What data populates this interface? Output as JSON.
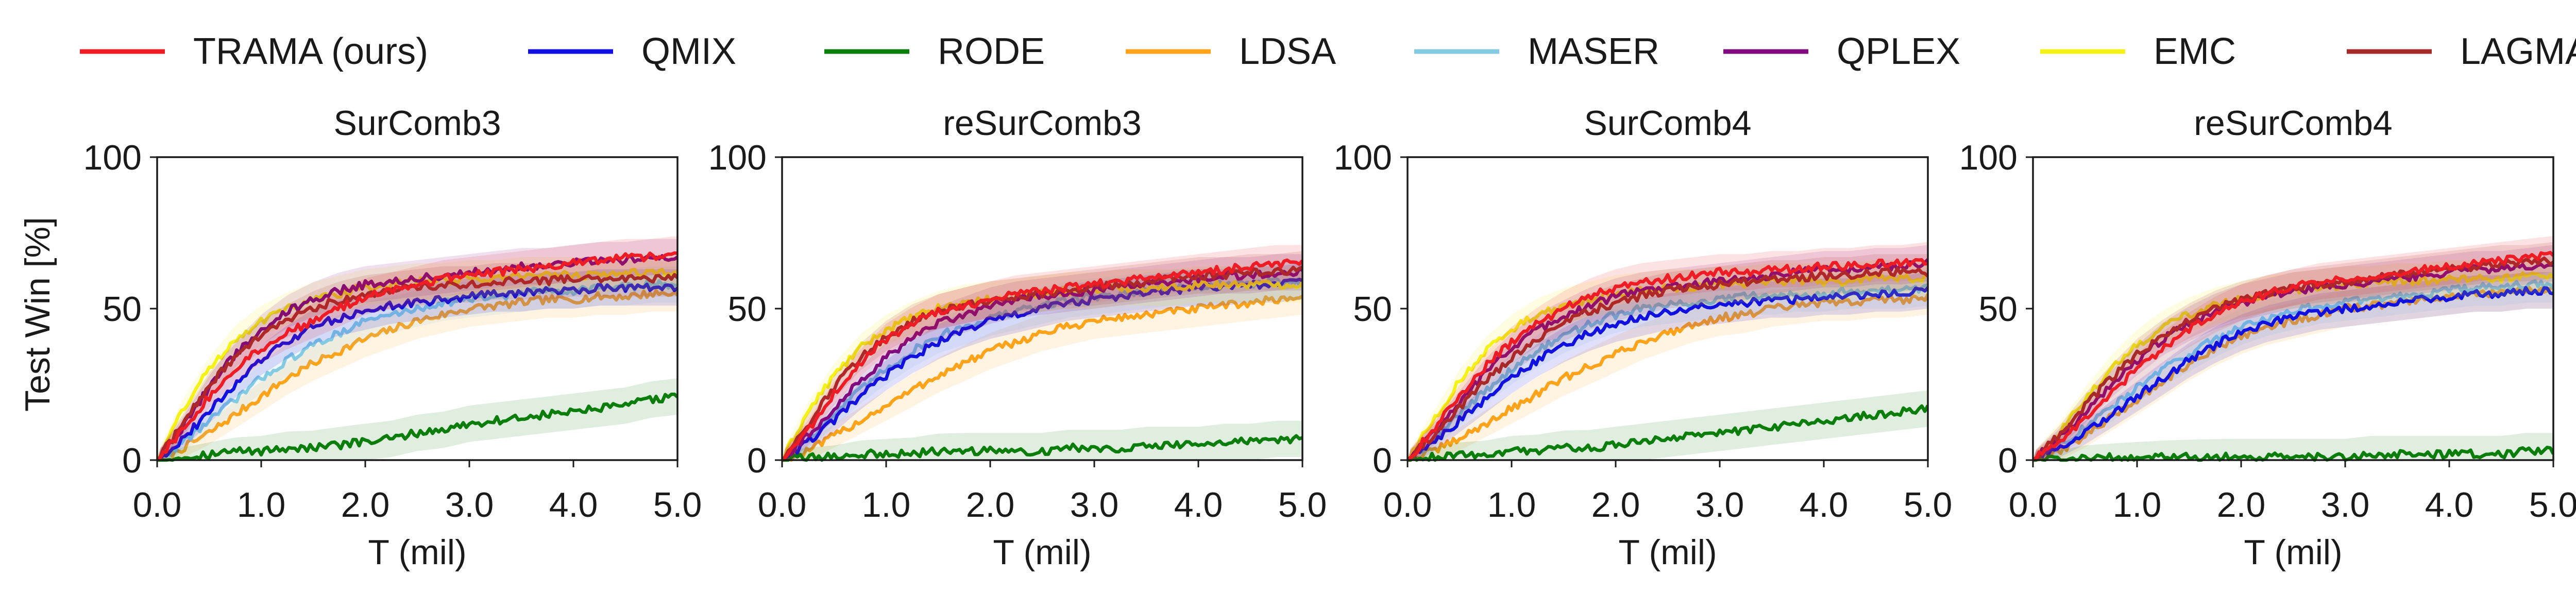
{
  "ylabel": "Test Win [%]",
  "legend": [
    {
      "name": "TRAMA (ours)",
      "color": "#ee1c25"
    },
    {
      "name": "QMIX",
      "color": "#1010e0"
    },
    {
      "name": "RODE",
      "color": "#0b7d0b"
    },
    {
      "name": "LDSA",
      "color": "#ffa31a"
    },
    {
      "name": "MASER",
      "color": "#82cbe3"
    },
    {
      "name": "QPLEX",
      "color": "#800a80"
    },
    {
      "name": "EMC",
      "color": "#f5f21a"
    },
    {
      "name": "LAGMA",
      "color": "#a52a2a"
    }
  ],
  "chart_data": [
    {
      "type": "line",
      "title": "SurComb3",
      "xlabel": "T (mil)",
      "ylabel": "Test Win [%]",
      "xlim": [
        0,
        5
      ],
      "ylim": [
        0,
        100
      ],
      "xticks": [
        "0.0",
        "1.0",
        "2.0",
        "3.0",
        "4.0",
        "5.0"
      ],
      "yticks": [
        "0",
        "50",
        "100"
      ],
      "x": [
        0,
        0.25,
        0.5,
        0.75,
        1.0,
        1.25,
        1.5,
        1.75,
        2.0,
        2.25,
        2.5,
        2.75,
        3.0,
        3.25,
        3.5,
        3.75,
        4.0,
        4.25,
        4.5,
        4.75,
        5.0
      ],
      "series": [
        {
          "name": "TRAMA (ours)",
          "values": [
            0,
            10,
            21,
            30,
            37,
            42,
            46,
            50,
            54,
            56,
            58,
            60,
            61,
            62,
            63,
            64,
            65,
            66,
            67,
            67,
            68
          ]
        },
        {
          "name": "QMIX",
          "values": [
            0,
            7,
            16,
            25,
            33,
            39,
            44,
            47,
            49,
            51,
            52,
            53,
            54,
            55,
            55,
            56,
            56,
            57,
            57,
            57,
            57
          ]
        },
        {
          "name": "RODE",
          "values": [
            0,
            1,
            2,
            3,
            3,
            4,
            4,
            5,
            6,
            7,
            9,
            10,
            12,
            13,
            14,
            15,
            16,
            17,
            18,
            20,
            21
          ]
        },
        {
          "name": "LDSA",
          "values": [
            0,
            4,
            9,
            15,
            21,
            27,
            32,
            36,
            40,
            43,
            46,
            48,
            50,
            51,
            52,
            53,
            53,
            54,
            54,
            55,
            55
          ]
        },
        {
          "name": "MASER",
          "values": [
            0,
            6,
            13,
            20,
            27,
            33,
            38,
            42,
            46,
            48,
            50,
            52,
            53,
            54,
            55,
            56,
            56,
            57,
            57,
            58,
            58
          ]
        },
        {
          "name": "QPLEX",
          "values": [
            0,
            11,
            24,
            35,
            43,
            49,
            53,
            56,
            58,
            59,
            60,
            61,
            62,
            63,
            64,
            64,
            65,
            66,
            66,
            67,
            67
          ]
        },
        {
          "name": "EMC",
          "values": [
            0,
            17,
            30,
            40,
            46,
            50,
            53,
            55,
            57,
            58,
            59,
            59,
            60,
            60,
            61,
            61,
            61,
            61,
            62,
            62,
            62
          ]
        },
        {
          "name": "LAGMA",
          "values": [
            0,
            12,
            25,
            34,
            41,
            46,
            50,
            53,
            55,
            56,
            57,
            58,
            58,
            59,
            59,
            59,
            60,
            60,
            60,
            60,
            60
          ]
        }
      ]
    },
    {
      "type": "line",
      "title": "reSurComb3",
      "xlabel": "T (mil)",
      "ylabel": "",
      "xlim": [
        0,
        5
      ],
      "ylim": [
        0,
        100
      ],
      "xticks": [
        "0.0",
        "1.0",
        "2.0",
        "3.0",
        "4.0",
        "5.0"
      ],
      "yticks": [
        "0",
        "50",
        "100"
      ],
      "x": [
        0,
        0.25,
        0.5,
        0.75,
        1.0,
        1.25,
        1.5,
        1.75,
        2.0,
        2.25,
        2.5,
        2.75,
        3.0,
        3.25,
        3.5,
        3.75,
        4.0,
        4.25,
        4.5,
        4.75,
        5.0
      ],
      "series": [
        {
          "name": "TRAMA (ours)",
          "values": [
            0,
            10,
            22,
            32,
            40,
            45,
            49,
            51,
            53,
            55,
            56,
            57,
            58,
            59,
            60,
            61,
            62,
            63,
            64,
            65,
            65
          ]
        },
        {
          "name": "QMIX",
          "values": [
            0,
            6,
            13,
            21,
            28,
            34,
            39,
            43,
            46,
            48,
            50,
            52,
            53,
            54,
            55,
            56,
            57,
            57,
            58,
            58,
            59
          ]
        },
        {
          "name": "RODE",
          "values": [
            0,
            1,
            1,
            2,
            2,
            2,
            3,
            3,
            3,
            3,
            3,
            4,
            4,
            4,
            5,
            5,
            5,
            6,
            6,
            7,
            7
          ]
        },
        {
          "name": "LDSA",
          "values": [
            0,
            3,
            8,
            13,
            18,
            23,
            28,
            32,
            36,
            39,
            42,
            44,
            46,
            47,
            48,
            49,
            50,
            51,
            52,
            53,
            54
          ]
        },
        {
          "name": "MASER",
          "values": [
            0,
            7,
            15,
            23,
            30,
            36,
            41,
            44,
            47,
            49,
            51,
            53,
            54,
            55,
            56,
            57,
            57,
            58,
            58,
            59,
            59
          ]
        },
        {
          "name": "QPLEX",
          "values": [
            0,
            8,
            17,
            26,
            34,
            40,
            45,
            48,
            51,
            53,
            54,
            55,
            56,
            57,
            58,
            59,
            60,
            61,
            61,
            62,
            62
          ]
        },
        {
          "name": "EMC",
          "values": [
            0,
            16,
            28,
            37,
            43,
            47,
            50,
            52,
            53,
            54,
            55,
            56,
            56,
            57,
            57,
            57,
            58,
            58,
            58,
            58,
            58
          ]
        },
        {
          "name": "LAGMA",
          "values": [
            0,
            12,
            24,
            34,
            41,
            46,
            49,
            51,
            53,
            54,
            55,
            56,
            57,
            58,
            59,
            60,
            61,
            61,
            62,
            62,
            63
          ]
        }
      ]
    },
    {
      "type": "line",
      "title": "SurComb4",
      "xlabel": "T (mil)",
      "ylabel": "",
      "xlim": [
        0,
        5
      ],
      "ylim": [
        0,
        100
      ],
      "xticks": [
        "0.0",
        "1.0",
        "2.0",
        "3.0",
        "4.0",
        "5.0"
      ],
      "yticks": [
        "0",
        "50",
        "100"
      ],
      "x": [
        0,
        0.25,
        0.5,
        0.75,
        1.0,
        1.25,
        1.5,
        1.75,
        2.0,
        2.25,
        2.5,
        2.75,
        3.0,
        3.25,
        3.5,
        3.75,
        4.0,
        4.25,
        4.5,
        4.75,
        5.0
      ],
      "series": [
        {
          "name": "TRAMA (ours)",
          "values": [
            0,
            10,
            21,
            31,
            39,
            45,
            50,
            54,
            57,
            59,
            60,
            61,
            62,
            62,
            63,
            63,
            64,
            64,
            65,
            65,
            66
          ]
        },
        {
          "name": "QMIX",
          "values": [
            0,
            6,
            13,
            20,
            27,
            33,
            38,
            42,
            45,
            47,
            49,
            50,
            51,
            52,
            53,
            53,
            54,
            54,
            55,
            55,
            56
          ]
        },
        {
          "name": "RODE",
          "values": [
            0,
            1,
            2,
            2,
            3,
            3,
            4,
            4,
            5,
            6,
            7,
            8,
            9,
            10,
            11,
            12,
            13,
            14,
            15,
            16,
            17
          ]
        },
        {
          "name": "LDSA",
          "values": [
            0,
            3,
            7,
            12,
            17,
            22,
            27,
            31,
            35,
            39,
            42,
            45,
            47,
            48,
            50,
            51,
            52,
            52,
            53,
            53,
            54
          ]
        },
        {
          "name": "MASER",
          "values": [
            0,
            7,
            15,
            23,
            30,
            36,
            41,
            45,
            48,
            50,
            51,
            52,
            53,
            54,
            54,
            55,
            55,
            56,
            56,
            56,
            57
          ]
        },
        {
          "name": "QPLEX",
          "values": [
            0,
            9,
            19,
            29,
            37,
            43,
            47,
            51,
            54,
            56,
            57,
            58,
            59,
            60,
            61,
            62,
            63,
            63,
            64,
            64,
            65
          ]
        },
        {
          "name": "EMC",
          "values": [
            0,
            13,
            26,
            36,
            43,
            48,
            51,
            53,
            55,
            56,
            57,
            57,
            58,
            58,
            59,
            59,
            59,
            59,
            60,
            60,
            60
          ]
        },
        {
          "name": "LAGMA",
          "values": [
            0,
            8,
            17,
            26,
            34,
            40,
            45,
            49,
            52,
            54,
            56,
            57,
            58,
            59,
            60,
            60,
            61,
            61,
            62,
            62,
            62
          ]
        }
      ]
    },
    {
      "type": "line",
      "title": "reSurComb4",
      "xlabel": "T (mil)",
      "ylabel": "",
      "xlim": [
        0,
        5
      ],
      "ylim": [
        0,
        100
      ],
      "xticks": [
        "0.0",
        "1.0",
        "2.0",
        "3.0",
        "4.0",
        "5.0"
      ],
      "yticks": [
        "0",
        "50",
        "100"
      ],
      "x": [
        0,
        0.25,
        0.5,
        0.75,
        1.0,
        1.25,
        1.5,
        1.75,
        2.0,
        2.25,
        2.5,
        2.75,
        3.0,
        3.25,
        3.5,
        3.75,
        4.0,
        4.25,
        4.5,
        4.75,
        5.0
      ],
      "series": [
        {
          "name": "TRAMA (ours)",
          "values": [
            0,
            6,
            14,
            22,
            30,
            37,
            43,
            48,
            52,
            55,
            57,
            59,
            60,
            61,
            62,
            63,
            64,
            65,
            66,
            67,
            68
          ]
        },
        {
          "name": "QMIX",
          "values": [
            0,
            4,
            9,
            15,
            21,
            27,
            33,
            38,
            42,
            45,
            47,
            49,
            50,
            51,
            52,
            53,
            54,
            55,
            55,
            56,
            56
          ]
        },
        {
          "name": "RODE",
          "values": [
            0,
            0,
            1,
            1,
            1,
            1,
            1,
            1,
            1,
            1,
            1,
            1,
            1,
            2,
            2,
            2,
            2,
            2,
            2,
            3,
            3
          ]
        },
        {
          "name": "LDSA",
          "values": [
            0,
            3,
            8,
            14,
            20,
            26,
            32,
            37,
            41,
            44,
            46,
            48,
            50,
            51,
            52,
            53,
            54,
            55,
            55,
            56,
            56
          ]
        },
        {
          "name": "MASER",
          "values": [
            0,
            5,
            11,
            17,
            24,
            30,
            35,
            40,
            44,
            47,
            49,
            51,
            52,
            53,
            54,
            55,
            56,
            57,
            57,
            58,
            58
          ]
        },
        {
          "name": "QPLEX",
          "values": [
            0,
            7,
            16,
            25,
            33,
            40,
            45,
            49,
            52,
            54,
            56,
            57,
            58,
            59,
            60,
            61,
            62,
            63,
            63,
            64,
            65
          ]
        },
        {
          "name": "EMC",
          "values": [
            0,
            9,
            20,
            30,
            38,
            44,
            48,
            51,
            53,
            55,
            56,
            57,
            58,
            58,
            59,
            59,
            60,
            60,
            60,
            61,
            61
          ]
        },
        {
          "name": "LAGMA",
          "values": [
            0,
            8,
            18,
            27,
            35,
            41,
            46,
            50,
            53,
            55,
            57,
            58,
            59,
            60,
            61,
            62,
            63,
            64,
            65,
            65,
            66
          ]
        }
      ]
    }
  ]
}
